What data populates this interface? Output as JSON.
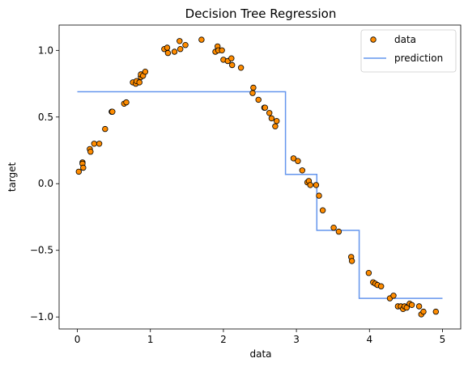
{
  "chart_data": {
    "type": "scatter",
    "title": "Decision Tree Regression",
    "xlabel": "data",
    "ylabel": "target",
    "xlim": [
      -0.25,
      5.25
    ],
    "ylim": [
      -1.09,
      1.19
    ],
    "x_ticks": [
      0,
      1,
      2,
      3,
      4,
      5
    ],
    "x_tick_labels": [
      "0",
      "1",
      "2",
      "3",
      "4",
      "5"
    ],
    "y_ticks": [
      -1.0,
      -0.5,
      0.0,
      0.5,
      1.0
    ],
    "y_tick_labels": [
      "−1.0",
      "−0.5",
      "0.0",
      "0.5",
      "1.0"
    ],
    "grid": false,
    "legend": {
      "placement": "top-right"
    },
    "series": [
      {
        "name": "data",
        "kind": "scatter",
        "color": "#ff8c00",
        "edge_color": "#000000",
        "points": [
          [
            0.02,
            0.09
          ],
          [
            0.07,
            0.16
          ],
          [
            0.07,
            0.15
          ],
          [
            0.08,
            0.12
          ],
          [
            0.17,
            0.26
          ],
          [
            0.18,
            0.24
          ],
          [
            0.23,
            0.3
          ],
          [
            0.3,
            0.3
          ],
          [
            0.38,
            0.41
          ],
          [
            0.47,
            0.54
          ],
          [
            0.48,
            0.54
          ],
          [
            0.64,
            0.6
          ],
          [
            0.67,
            0.61
          ],
          [
            0.76,
            0.76
          ],
          [
            0.8,
            0.75
          ],
          [
            0.81,
            0.77
          ],
          [
            0.85,
            0.76
          ],
          [
            0.87,
            0.8
          ],
          [
            0.87,
            0.82
          ],
          [
            0.9,
            0.81
          ],
          [
            0.93,
            0.84
          ],
          [
            1.19,
            1.01
          ],
          [
            1.23,
            1.02
          ],
          [
            1.24,
            0.98
          ],
          [
            1.33,
            0.99
          ],
          [
            1.4,
            1.07
          ],
          [
            1.41,
            1.01
          ],
          [
            1.48,
            1.04
          ],
          [
            1.7,
            1.08
          ],
          [
            1.89,
            0.99
          ],
          [
            1.92,
            1.03
          ],
          [
            1.93,
            1.0
          ],
          [
            1.98,
            1.0
          ],
          [
            2.0,
            0.93
          ],
          [
            2.06,
            0.92
          ],
          [
            2.11,
            0.94
          ],
          [
            2.12,
            0.89
          ],
          [
            2.24,
            0.87
          ],
          [
            2.4,
            0.68
          ],
          [
            2.41,
            0.72
          ],
          [
            2.48,
            0.63
          ],
          [
            2.56,
            0.57
          ],
          [
            2.57,
            0.57
          ],
          [
            2.63,
            0.53
          ],
          [
            2.66,
            0.49
          ],
          [
            2.71,
            0.43
          ],
          [
            2.73,
            0.47
          ],
          [
            2.96,
            0.19
          ],
          [
            3.02,
            0.17
          ],
          [
            3.08,
            0.1
          ],
          [
            3.15,
            0.01
          ],
          [
            3.17,
            0.02
          ],
          [
            3.19,
            -0.01
          ],
          [
            3.27,
            -0.01
          ],
          [
            3.31,
            -0.09
          ],
          [
            3.36,
            -0.2
          ],
          [
            3.51,
            -0.33
          ],
          [
            3.58,
            -0.36
          ],
          [
            3.75,
            -0.55
          ],
          [
            3.76,
            -0.58
          ],
          [
            3.99,
            -0.67
          ],
          [
            4.05,
            -0.74
          ],
          [
            4.08,
            -0.75
          ],
          [
            4.11,
            -0.76
          ],
          [
            4.16,
            -0.77
          ],
          [
            4.28,
            -0.86
          ],
          [
            4.33,
            -0.84
          ],
          [
            4.39,
            -0.92
          ],
          [
            4.43,
            -0.92
          ],
          [
            4.46,
            -0.94
          ],
          [
            4.48,
            -0.92
          ],
          [
            4.51,
            -0.93
          ],
          [
            4.55,
            -0.9
          ],
          [
            4.58,
            -0.91
          ],
          [
            4.68,
            -0.92
          ],
          [
            4.71,
            -0.98
          ],
          [
            4.74,
            -0.96
          ],
          [
            4.91,
            -0.96
          ]
        ]
      },
      {
        "name": "prediction",
        "kind": "step",
        "color": "#6495ed",
        "points": [
          [
            0.0,
            0.69
          ],
          [
            2.85,
            0.69
          ],
          [
            2.85,
            0.07
          ],
          [
            3.28,
            0.07
          ],
          [
            3.28,
            -0.35
          ],
          [
            3.86,
            -0.35
          ],
          [
            3.86,
            -0.86
          ],
          [
            5.0,
            -0.86
          ]
        ]
      }
    ]
  }
}
